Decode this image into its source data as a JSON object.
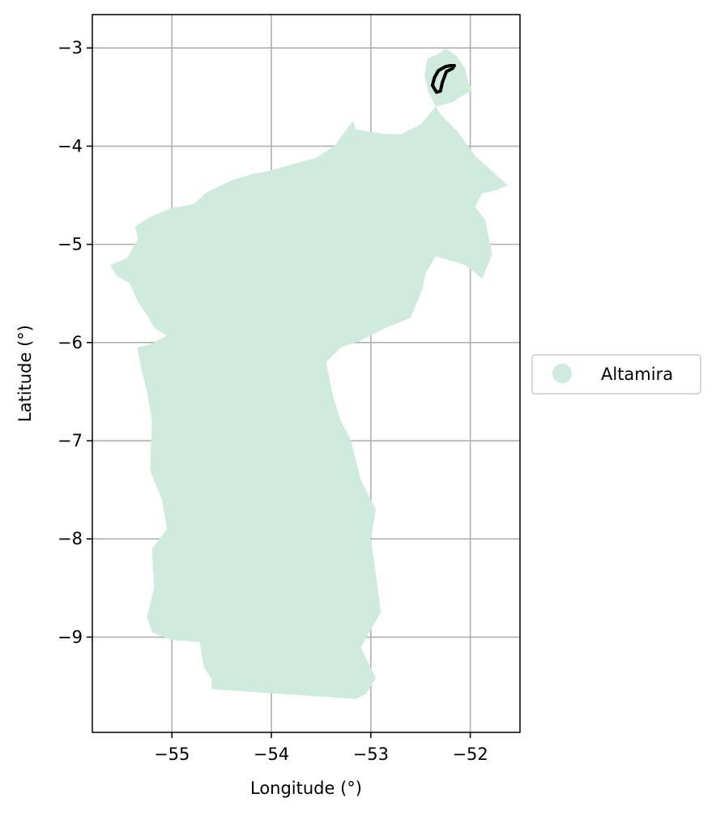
{
  "chart_data": {
    "type": "map",
    "xlabel": "Longitude (°)",
    "ylabel": "Latitude (°)",
    "xlim": [
      -55.8,
      -51.5
    ],
    "ylim": [
      -9.97,
      -2.66
    ],
    "xticks": [
      -55,
      -54,
      -53,
      -52
    ],
    "yticks": [
      -3,
      -4,
      -5,
      -6,
      -7,
      -8,
      -9
    ],
    "xtick_labels": [
      "−55",
      "−54",
      "−53",
      "−52"
    ],
    "ytick_labels": [
      "−3",
      "−4",
      "−5",
      "−6",
      "−7",
      "−8",
      "−9"
    ],
    "grid": true,
    "legend": {
      "placement": "right",
      "entries": [
        {
          "label": "Altamira",
          "color": "#cfebde"
        }
      ]
    },
    "colors": {
      "region_fill": "#cfebde",
      "outline": "#000000",
      "grid": "#b0b0b0"
    },
    "region": {
      "name": "Altamira",
      "polygon": [
        [
          -52.25,
          -3.0
        ],
        [
          -52.14,
          -3.08
        ],
        [
          -52.05,
          -3.21
        ],
        [
          -52.02,
          -3.35
        ],
        [
          -51.98,
          -3.43
        ],
        [
          -52.1,
          -3.5
        ],
        [
          -52.17,
          -3.55
        ],
        [
          -52.35,
          -3.6
        ],
        [
          -52.5,
          -3.78
        ],
        [
          -52.7,
          -3.88
        ],
        [
          -52.9,
          -3.87
        ],
        [
          -53.15,
          -3.83
        ],
        [
          -53.18,
          -3.74
        ],
        [
          -53.23,
          -3.81
        ],
        [
          -53.37,
          -4.0
        ],
        [
          -53.55,
          -4.12
        ],
        [
          -53.85,
          -4.2
        ],
        [
          -54.05,
          -4.26
        ],
        [
          -54.18,
          -4.28
        ],
        [
          -54.4,
          -4.35
        ],
        [
          -54.65,
          -4.47
        ],
        [
          -54.78,
          -4.59
        ],
        [
          -55.0,
          -4.63
        ],
        [
          -55.22,
          -4.72
        ],
        [
          -55.37,
          -4.82
        ],
        [
          -55.34,
          -4.94
        ],
        [
          -55.45,
          -5.14
        ],
        [
          -55.62,
          -5.21
        ],
        [
          -55.56,
          -5.32
        ],
        [
          -55.42,
          -5.4
        ],
        [
          -55.35,
          -5.57
        ],
        [
          -55.25,
          -5.72
        ],
        [
          -55.18,
          -5.85
        ],
        [
          -55.05,
          -5.93
        ],
        [
          -55.22,
          -6.02
        ],
        [
          -55.35,
          -6.05
        ],
        [
          -55.3,
          -6.3
        ],
        [
          -55.25,
          -6.5
        ],
        [
          -55.2,
          -6.8
        ],
        [
          -55.22,
          -7.3
        ],
        [
          -55.1,
          -7.6
        ],
        [
          -55.05,
          -7.9
        ],
        [
          -55.2,
          -8.1
        ],
        [
          -55.18,
          -8.5
        ],
        [
          -55.25,
          -8.8
        ],
        [
          -55.2,
          -8.95
        ],
        [
          -55.0,
          -9.03
        ],
        [
          -54.72,
          -9.05
        ],
        [
          -54.68,
          -9.3
        ],
        [
          -54.6,
          -9.43
        ],
        [
          -54.6,
          -9.53
        ],
        [
          -53.15,
          -9.63
        ],
        [
          -53.05,
          -9.58
        ],
        [
          -52.95,
          -9.42
        ],
        [
          -53.1,
          -9.1
        ],
        [
          -52.9,
          -8.75
        ],
        [
          -52.95,
          -8.35
        ],
        [
          -53.0,
          -8.0
        ],
        [
          -52.95,
          -7.7
        ],
        [
          -53.1,
          -7.4
        ],
        [
          -53.2,
          -7.0
        ],
        [
          -53.3,
          -6.8
        ],
        [
          -53.38,
          -6.55
        ],
        [
          -53.45,
          -6.2
        ],
        [
          -53.3,
          -6.05
        ],
        [
          -53.1,
          -5.98
        ],
        [
          -52.85,
          -5.85
        ],
        [
          -52.6,
          -5.75
        ],
        [
          -52.48,
          -5.45
        ],
        [
          -52.45,
          -5.3
        ],
        [
          -52.35,
          -5.12
        ],
        [
          -52.05,
          -5.21
        ],
        [
          -51.88,
          -5.35
        ],
        [
          -51.78,
          -5.1
        ],
        [
          -51.85,
          -4.75
        ],
        [
          -51.95,
          -4.62
        ],
        [
          -51.88,
          -4.48
        ],
        [
          -51.78,
          -4.46
        ],
        [
          -51.62,
          -4.4
        ],
        [
          -51.95,
          -4.1
        ],
        [
          -52.13,
          -3.85
        ],
        [
          -52.3,
          -3.68
        ],
        [
          -52.42,
          -3.45
        ],
        [
          -52.46,
          -3.28
        ],
        [
          -52.43,
          -3.11
        ],
        [
          -52.3,
          -3.05
        ]
      ]
    },
    "outline": {
      "polygon": [
        [
          -52.16,
          -3.18
        ],
        [
          -52.18,
          -3.21
        ],
        [
          -52.24,
          -3.24
        ],
        [
          -52.28,
          -3.35
        ],
        [
          -52.3,
          -3.44
        ],
        [
          -52.34,
          -3.45
        ],
        [
          -52.38,
          -3.38
        ],
        [
          -52.36,
          -3.3
        ],
        [
          -52.32,
          -3.23
        ],
        [
          -52.25,
          -3.19
        ],
        [
          -52.2,
          -3.18
        ]
      ]
    }
  }
}
